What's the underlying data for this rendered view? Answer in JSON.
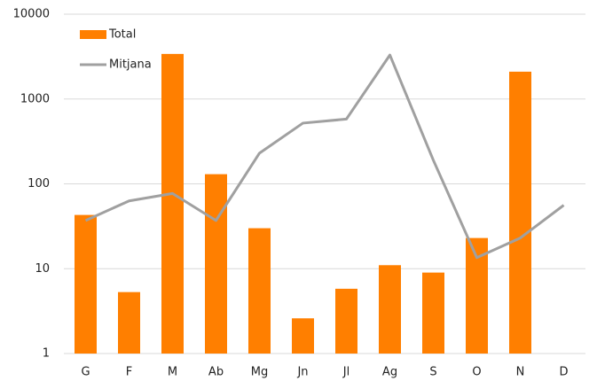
{
  "chart_data": {
    "type": "bar",
    "log_scale": true,
    "grid": true,
    "legend": "upper left",
    "categories": [
      "G",
      "F",
      "M",
      "Ab",
      "Mg",
      "Jn",
      "Jl",
      "Ag",
      "S",
      "O",
      "N",
      "D"
    ],
    "series": [
      {
        "name": "Total",
        "type": "bar",
        "color": "#ff7f00",
        "values": [
          43,
          5.3,
          3400,
          130,
          30,
          2.6,
          5.8,
          11,
          9,
          23,
          2100,
          null
        ]
      },
      {
        "name": "Mitjana",
        "type": "line",
        "color": "#a0a0a0",
        "values": [
          37,
          63,
          77,
          37,
          230,
          520,
          580,
          3300,
          190,
          13.5,
          23,
          56
        ]
      }
    ],
    "ylim": [
      1,
      10000
    ],
    "yticks": [
      1,
      10,
      100,
      1000,
      10000
    ]
  }
}
